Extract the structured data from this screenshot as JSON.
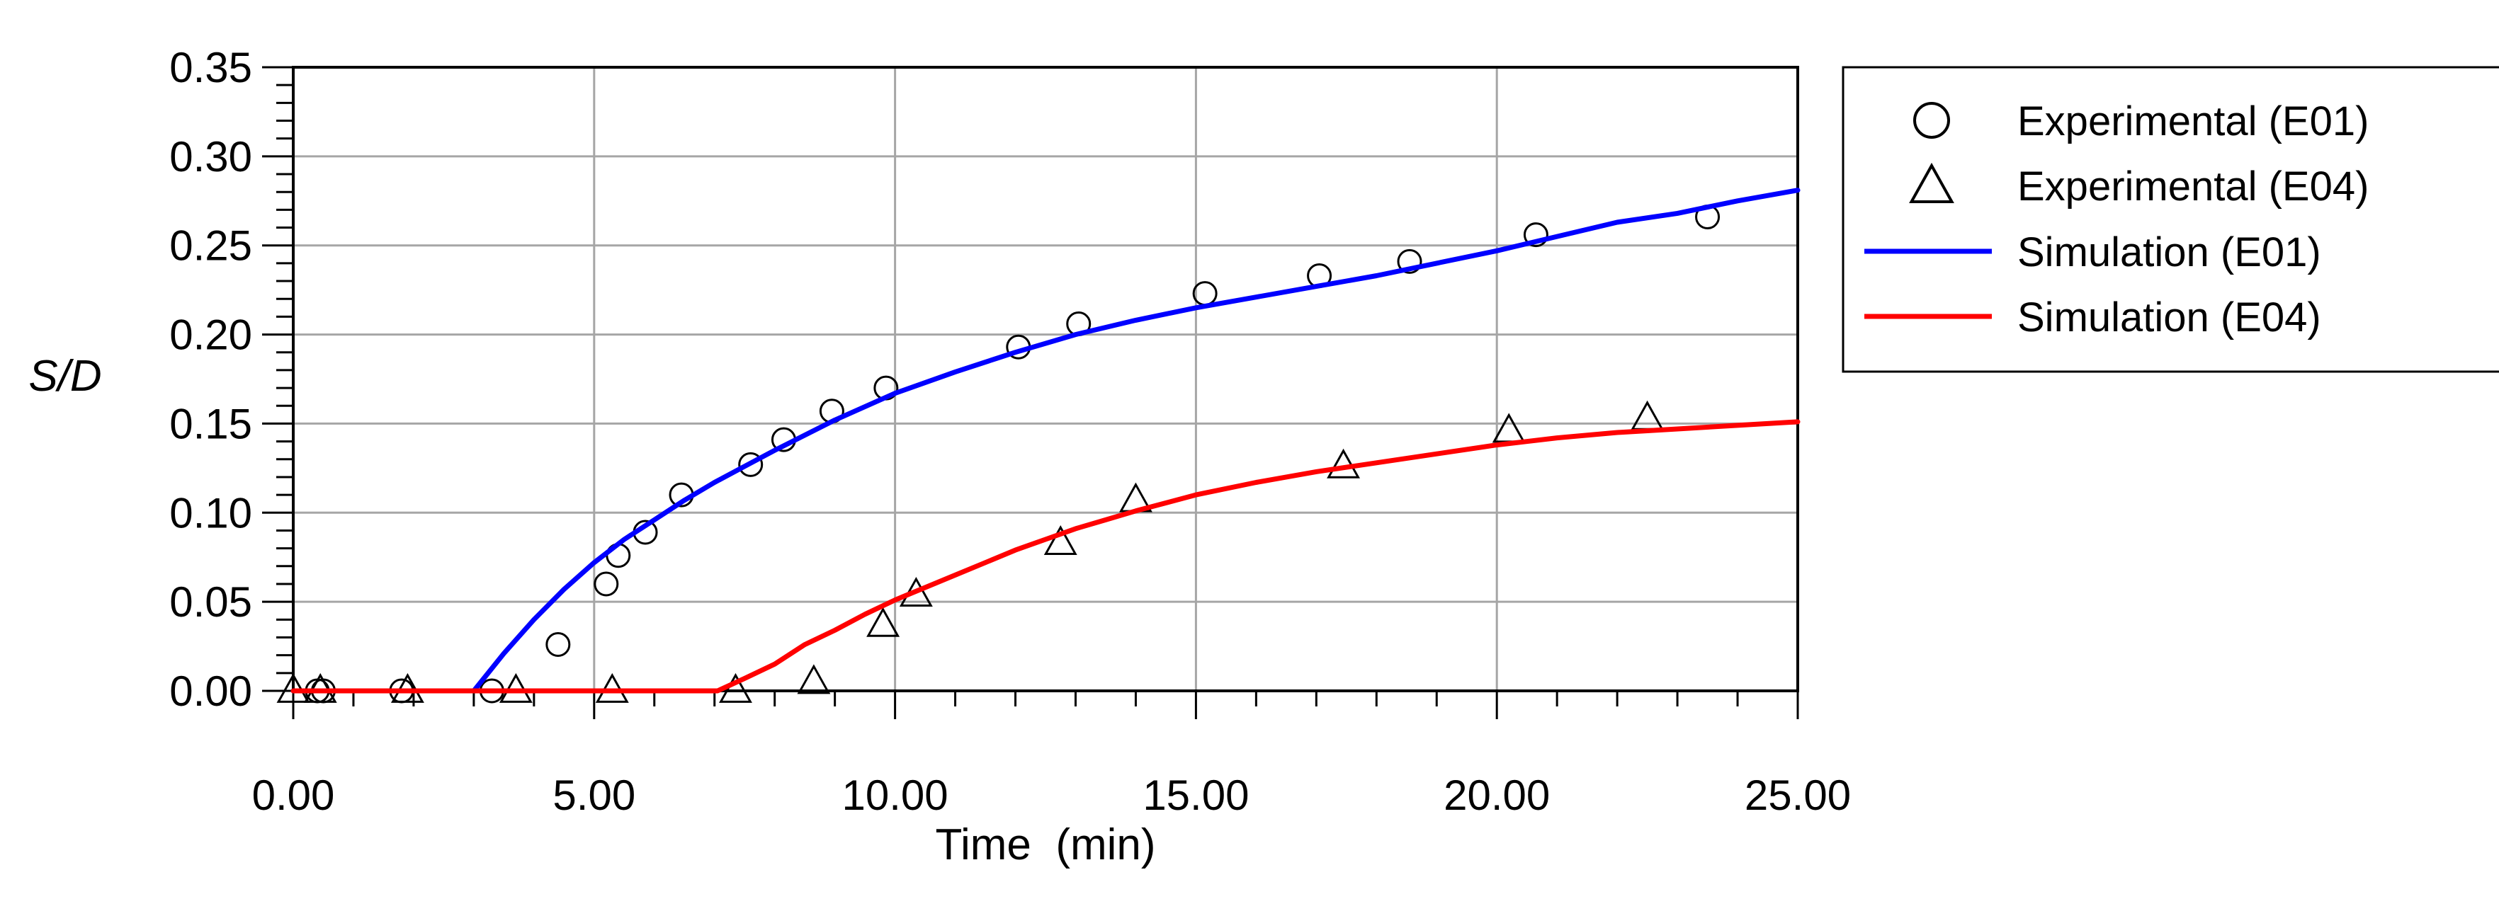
{
  "chart_data": {
    "type": "scatter",
    "title": "",
    "xlabel": "Time  (min)",
    "ylabel": "S/D",
    "xlim": [
      0,
      25
    ],
    "ylim": [
      0,
      0.35
    ],
    "grid": true,
    "legend_position": "right",
    "x_ticks": [
      0,
      5,
      10,
      15,
      20,
      25
    ],
    "x_tick_labels": [
      "0.00",
      "5.00",
      "10.00",
      "15.00",
      "20.00",
      "25.00"
    ],
    "y_ticks": [
      0,
      0.05,
      0.1,
      0.15,
      0.2,
      0.25,
      0.3,
      0.35
    ],
    "y_tick_labels": [
      "0.00",
      "0.05",
      "0.10",
      "0.15",
      "0.20",
      "0.25",
      "0.30",
      "0.35"
    ],
    "series": [
      {
        "name": "Experimental (E01)",
        "kind": "markers",
        "marker": "circle",
        "color": "#000000",
        "x": [
          0.4,
          0.5,
          1.8,
          3.3,
          4.4,
          5.2,
          5.4,
          5.85,
          6.45,
          7.6,
          8.15,
          8.95,
          9.85,
          12.05,
          13.05,
          15.15,
          17.05,
          18.55,
          20.65,
          23.5
        ],
        "y": [
          0.0,
          0.0,
          0.0,
          0.0,
          0.026,
          0.06,
          0.076,
          0.089,
          0.11,
          0.127,
          0.141,
          0.157,
          0.17,
          0.193,
          0.206,
          0.223,
          0.233,
          0.241,
          0.256,
          0.266
        ]
      },
      {
        "name": "Experimental (E04)",
        "kind": "markers",
        "marker": "triangle",
        "color": "#000000",
        "x": [
          0.0,
          0.45,
          1.9,
          3.7,
          5.3,
          7.35,
          8.65,
          9.8,
          10.35,
          12.75,
          14.0,
          17.45,
          20.2,
          22.5
        ],
        "y": [
          0.0,
          0.0,
          0.0,
          0.0,
          0.0,
          0.0,
          0.005,
          0.037,
          0.054,
          0.083,
          0.107,
          0.126,
          0.146,
          0.153
        ]
      },
      {
        "name": "Simulation (E01)",
        "kind": "line",
        "color": "#0000ff",
        "x": [
          0,
          3.0,
          3.5,
          4.0,
          4.5,
          5.0,
          5.5,
          6.0,
          6.5,
          7.0,
          7.5,
          8.0,
          9.0,
          10.0,
          11.0,
          12.0,
          13.0,
          14.0,
          15.0,
          16.0,
          17.0,
          18.0,
          19.0,
          20.0,
          21.0,
          22.0,
          23.0,
          24.0,
          25.0
        ],
        "y": [
          0.0,
          0.0,
          0.021,
          0.04,
          0.057,
          0.072,
          0.085,
          0.096,
          0.107,
          0.117,
          0.126,
          0.135,
          0.152,
          0.167,
          0.179,
          0.19,
          0.2,
          0.208,
          0.215,
          0.221,
          0.227,
          0.233,
          0.24,
          0.247,
          0.255,
          0.263,
          0.268,
          0.275,
          0.281
        ]
      },
      {
        "name": "Simulation (E04)",
        "kind": "line",
        "color": "#ff0000",
        "x": [
          0,
          7.05,
          7.5,
          8.0,
          8.5,
          9.0,
          9.5,
          10.0,
          10.5,
          11.0,
          11.5,
          12.0,
          12.5,
          13.0,
          13.5,
          14.0,
          15.0,
          16.0,
          17.0,
          18.0,
          19.0,
          20.0,
          21.0,
          22.0,
          23.0,
          24.0,
          25.0
        ],
        "y": [
          0.0,
          0.0,
          0.007,
          0.015,
          0.026,
          0.034,
          0.043,
          0.051,
          0.058,
          0.065,
          0.072,
          0.079,
          0.085,
          0.091,
          0.096,
          0.101,
          0.11,
          0.117,
          0.123,
          0.128,
          0.133,
          0.138,
          0.142,
          0.145,
          0.147,
          0.149,
          0.151
        ]
      }
    ]
  }
}
